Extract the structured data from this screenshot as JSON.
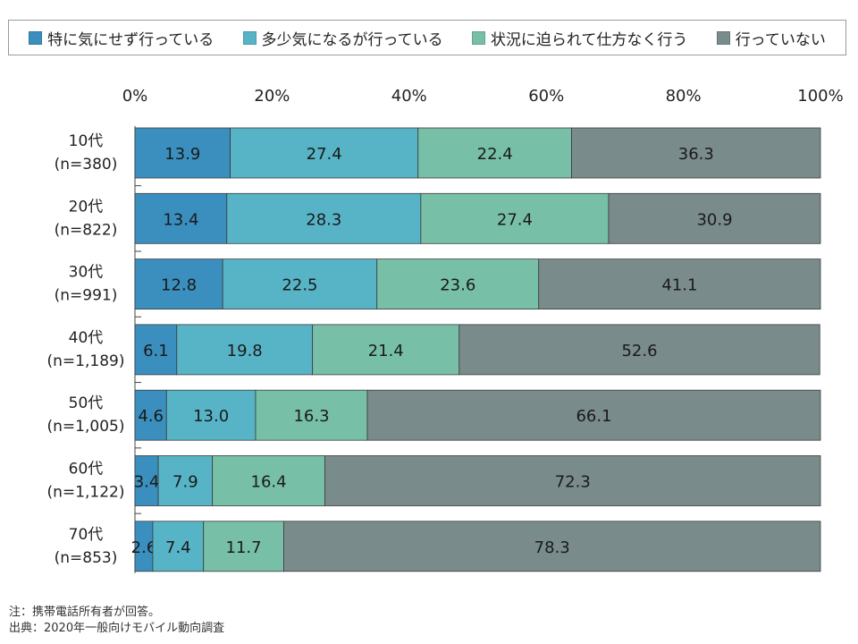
{
  "legend": [
    {
      "label": "特に気にせず行っている",
      "color": "#3a8fbe"
    },
    {
      "label": "多少気になるが行っている",
      "color": "#57b4c6"
    },
    {
      "label": "状況に迫られて仕方なく行う",
      "color": "#78bfa8"
    },
    {
      "label": "行っていない",
      "color": "#7a8b8c"
    }
  ],
  "notes": {
    "note": "注：携帯電話所有者が回答。",
    "source": "出典：2020年一般向けモバイル動向調査"
  },
  "chart_data": {
    "type": "bar",
    "orientation": "horizontal",
    "stacked": true,
    "percent": true,
    "xlim": [
      0,
      100
    ],
    "x_ticks": [
      "0%",
      "20%",
      "40%",
      "60%",
      "80%",
      "100%"
    ],
    "categories": [
      [
        "10代",
        "(n=380)"
      ],
      [
        "20代",
        "(n=822)"
      ],
      [
        "30代",
        "(n=991)"
      ],
      [
        "40代",
        "(n=1,189)"
      ],
      [
        "50代",
        "(n=1,005)"
      ],
      [
        "60代",
        "(n=1,122)"
      ],
      [
        "70代",
        "(n=853)"
      ]
    ],
    "series": [
      {
        "name": "特に気にせず行っている",
        "color": "#3a8fbe",
        "values": [
          13.9,
          13.4,
          12.8,
          6.1,
          4.6,
          3.4,
          2.6
        ]
      },
      {
        "name": "多少気になるが行っている",
        "color": "#57b4c6",
        "values": [
          27.4,
          28.3,
          22.5,
          19.8,
          13.0,
          7.9,
          7.4
        ]
      },
      {
        "name": "状況に迫られて仕方なく行う",
        "color": "#78bfa8",
        "values": [
          22.4,
          27.4,
          23.6,
          21.4,
          16.3,
          16.4,
          11.7
        ]
      },
      {
        "name": "行っていない",
        "color": "#7a8b8c",
        "values": [
          36.3,
          30.9,
          41.1,
          52.6,
          66.1,
          72.3,
          78.3
        ]
      }
    ],
    "labels": [
      [
        "13.9",
        "27.4",
        "22.4",
        "36.3"
      ],
      [
        "13.4",
        "28.3",
        "27.4",
        "30.9"
      ],
      [
        "12.8",
        "22.5",
        "23.6",
        "41.1"
      ],
      [
        "6.1",
        "19.8",
        "21.4",
        "52.6"
      ],
      [
        "4.6",
        "13.0",
        "16.3",
        "66.1"
      ],
      [
        "3.4",
        "7.9",
        "16.4",
        "72.3"
      ],
      [
        "2.6",
        "7.4",
        "11.7",
        "78.3"
      ]
    ]
  }
}
